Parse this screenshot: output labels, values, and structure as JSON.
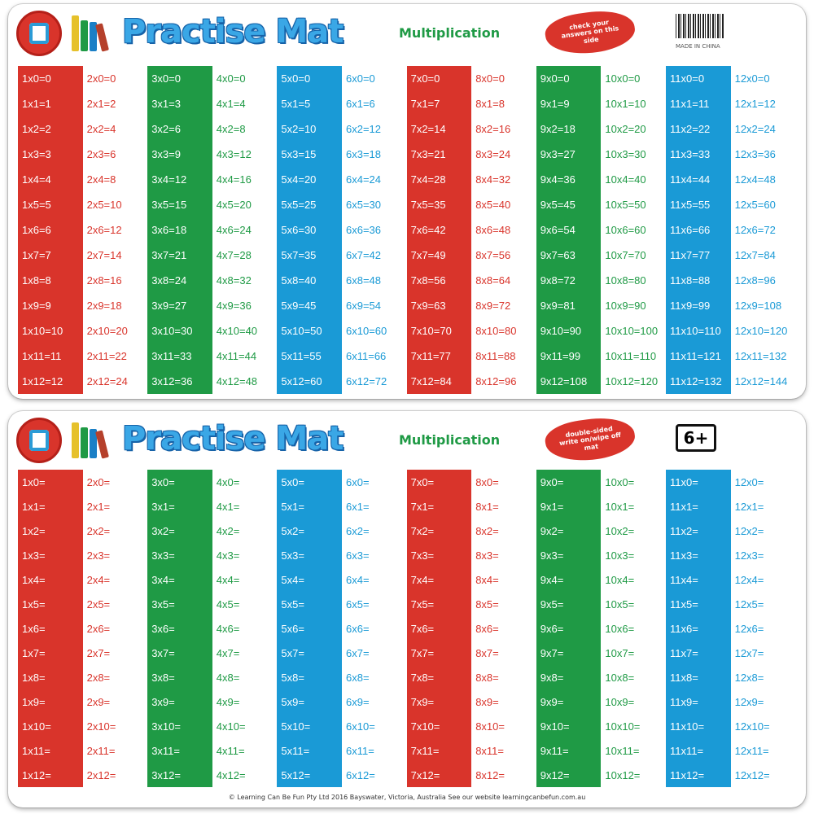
{
  "colors": {
    "red": "#d9342b",
    "green": "#1f9a45",
    "blue": "#1a9ad6",
    "white": "#ffffff"
  },
  "back_mat": {
    "title": "Practise Mat",
    "subtitle": "Multiplication",
    "badge": "check your answers on this side",
    "made_in": "MADE IN CHINA",
    "icons": [
      "brand-logo-icon",
      "books-icon",
      "barcode-icon"
    ],
    "columns": [
      {
        "color": "red",
        "filled": true,
        "cells": [
          "1x0=0",
          "1x1=1",
          "1x2=2",
          "1x3=3",
          "1x4=4",
          "1x5=5",
          "1x6=6",
          "1x7=7",
          "1x8=8",
          "1x9=9",
          "1x10=10",
          "1x11=11",
          "1x12=12"
        ]
      },
      {
        "color": "red",
        "filled": false,
        "cells": [
          "2x0=0",
          "2x1=2",
          "2x2=4",
          "2x3=6",
          "2x4=8",
          "2x5=10",
          "2x6=12",
          "2x7=14",
          "2x8=16",
          "2x9=18",
          "2x10=20",
          "2x11=22",
          "2x12=24"
        ]
      },
      {
        "color": "green",
        "filled": true,
        "cells": [
          "3x0=0",
          "3x1=3",
          "3x2=6",
          "3x3=9",
          "3x4=12",
          "3x5=15",
          "3x6=18",
          "3x7=21",
          "3x8=24",
          "3x9=27",
          "3x10=30",
          "3x11=33",
          "3x12=36"
        ]
      },
      {
        "color": "green",
        "filled": false,
        "cells": [
          "4x0=0",
          "4x1=4",
          "4x2=8",
          "4x3=12",
          "4x4=16",
          "4x5=20",
          "4x6=24",
          "4x7=28",
          "4x8=32",
          "4x9=36",
          "4x10=40",
          "4x11=44",
          "4x12=48"
        ]
      },
      {
        "color": "blue",
        "filled": true,
        "cells": [
          "5x0=0",
          "5x1=5",
          "5x2=10",
          "5x3=15",
          "5x4=20",
          "5x5=25",
          "5x6=30",
          "5x7=35",
          "5x8=40",
          "5x9=45",
          "5x10=50",
          "5x11=55",
          "5x12=60"
        ]
      },
      {
        "color": "blue",
        "filled": false,
        "cells": [
          "6x0=0",
          "6x1=6",
          "6x2=12",
          "6x3=18",
          "6x4=24",
          "6x5=30",
          "6x6=36",
          "6x7=42",
          "6x8=48",
          "6x9=54",
          "6x10=60",
          "6x11=66",
          "6x12=72"
        ]
      },
      {
        "color": "red",
        "filled": true,
        "cells": [
          "7x0=0",
          "7x1=7",
          "7x2=14",
          "7x3=21",
          "7x4=28",
          "7x5=35",
          "7x6=42",
          "7x7=49",
          "7x8=56",
          "7x9=63",
          "7x10=70",
          "7x11=77",
          "7x12=84"
        ]
      },
      {
        "color": "red",
        "filled": false,
        "cells": [
          "8x0=0",
          "8x1=8",
          "8x2=16",
          "8x3=24",
          "8x4=32",
          "8x5=40",
          "8x6=48",
          "8x7=56",
          "8x8=64",
          "8x9=72",
          "8x10=80",
          "8x11=88",
          "8x12=96"
        ]
      },
      {
        "color": "green",
        "filled": true,
        "cells": [
          "9x0=0",
          "9x1=9",
          "9x2=18",
          "9x3=27",
          "9x4=36",
          "9x5=45",
          "9x6=54",
          "9x7=63",
          "9x8=72",
          "9x9=81",
          "9x10=90",
          "9x11=99",
          "9x12=108"
        ]
      },
      {
        "color": "green",
        "filled": false,
        "cells": [
          "10x0=0",
          "10x1=10",
          "10x2=20",
          "10x3=30",
          "10x4=40",
          "10x5=50",
          "10x6=60",
          "10x7=70",
          "10x8=80",
          "10x9=90",
          "10x10=100",
          "10x11=110",
          "10x12=120"
        ]
      },
      {
        "color": "blue",
        "filled": true,
        "cells": [
          "11x0=0",
          "11x1=11",
          "11x2=22",
          "11x3=33",
          "11x4=44",
          "11x5=55",
          "11x6=66",
          "11x7=77",
          "11x8=88",
          "11x9=99",
          "11x10=110",
          "11x11=121",
          "11x12=132"
        ]
      },
      {
        "color": "blue",
        "filled": false,
        "cells": [
          "12x0=0",
          "12x1=12",
          "12x2=24",
          "12x3=36",
          "12x4=48",
          "12x5=60",
          "12x6=72",
          "12x7=84",
          "12x8=96",
          "12x9=108",
          "12x10=120",
          "12x11=132",
          "12x12=144"
        ]
      }
    ]
  },
  "front_mat": {
    "title": "Practise Mat",
    "subtitle": "Multiplication",
    "badge": "double-sided write on/wipe off mat",
    "age": "6+",
    "footer": "© Learning Can Be Fun Pty Ltd 2016 Bayswater, Victoria, Australia See our website learningcanbefun.com.au",
    "icons": [
      "brand-logo-icon",
      "books-icon"
    ],
    "columns": [
      {
        "color": "red",
        "filled": true,
        "cells": [
          "1x0=",
          "1x1=",
          "1x2=",
          "1x3=",
          "1x4=",
          "1x5=",
          "1x6=",
          "1x7=",
          "1x8=",
          "1x9=",
          "1x10=",
          "1x11=",
          "1x12="
        ]
      },
      {
        "color": "red",
        "filled": false,
        "cells": [
          "2x0=",
          "2x1=",
          "2x2=",
          "2x3=",
          "2x4=",
          "2x5=",
          "2x6=",
          "2x7=",
          "2x8=",
          "2x9=",
          "2x10=",
          "2x11=",
          "2x12="
        ]
      },
      {
        "color": "green",
        "filled": true,
        "cells": [
          "3x0=",
          "3x1=",
          "3x2=",
          "3x3=",
          "3x4=",
          "3x5=",
          "3x6=",
          "3x7=",
          "3x8=",
          "3x9=",
          "3x10=",
          "3x11=",
          "3x12="
        ]
      },
      {
        "color": "green",
        "filled": false,
        "cells": [
          "4x0=",
          "4x1=",
          "4x2=",
          "4x3=",
          "4x4=",
          "4x5=",
          "4x6=",
          "4x7=",
          "4x8=",
          "4x9=",
          "4x10=",
          "4x11=",
          "4x12="
        ]
      },
      {
        "color": "blue",
        "filled": true,
        "cells": [
          "5x0=",
          "5x1=",
          "5x2=",
          "5x3=",
          "5x4=",
          "5x5=",
          "5x6=",
          "5x7=",
          "5x8=",
          "5x9=",
          "5x10=",
          "5x11=",
          "5x12="
        ]
      },
      {
        "color": "blue",
        "filled": false,
        "cells": [
          "6x0=",
          "6x1=",
          "6x2=",
          "6x3=",
          "6x4=",
          "6x5=",
          "6x6=",
          "6x7=",
          "6x8=",
          "6x9=",
          "6x10=",
          "6x11=",
          "6x12="
        ]
      },
      {
        "color": "red",
        "filled": true,
        "cells": [
          "7x0=",
          "7x1=",
          "7x2=",
          "7x3=",
          "7x4=",
          "7x5=",
          "7x6=",
          "7x7=",
          "7x8=",
          "7x9=",
          "7x10=",
          "7x11=",
          "7x12="
        ]
      },
      {
        "color": "red",
        "filled": false,
        "cells": [
          "8x0=",
          "8x1=",
          "8x2=",
          "8x3=",
          "8x4=",
          "8x5=",
          "8x6=",
          "8x7=",
          "8x8=",
          "8x9=",
          "8x10=",
          "8x11=",
          "8x12="
        ]
      },
      {
        "color": "green",
        "filled": true,
        "cells": [
          "9x0=",
          "9x1=",
          "9x2=",
          "9x3=",
          "9x4=",
          "9x5=",
          "9x6=",
          "9x7=",
          "9x8=",
          "9x9=",
          "9x10=",
          "9x11=",
          "9x12="
        ]
      },
      {
        "color": "green",
        "filled": false,
        "cells": [
          "10x0=",
          "10x1=",
          "10x2=",
          "10x3=",
          "10x4=",
          "10x5=",
          "10x6=",
          "10x7=",
          "10x8=",
          "10x9=",
          "10x10=",
          "10x11=",
          "10x12="
        ]
      },
      {
        "color": "blue",
        "filled": true,
        "cells": [
          "11x0=",
          "11x1=",
          "11x2=",
          "11x3=",
          "11x4=",
          "11x5=",
          "11x6=",
          "11x7=",
          "11x8=",
          "11x9=",
          "11x10=",
          "11x11=",
          "11x12="
        ]
      },
      {
        "color": "blue",
        "filled": false,
        "cells": [
          "12x0=",
          "12x1=",
          "12x2=",
          "12x3=",
          "12x4=",
          "12x5=",
          "12x6=",
          "12x7=",
          "12x8=",
          "12x9=",
          "12x10=",
          "12x11=",
          "12x12="
        ]
      }
    ]
  }
}
